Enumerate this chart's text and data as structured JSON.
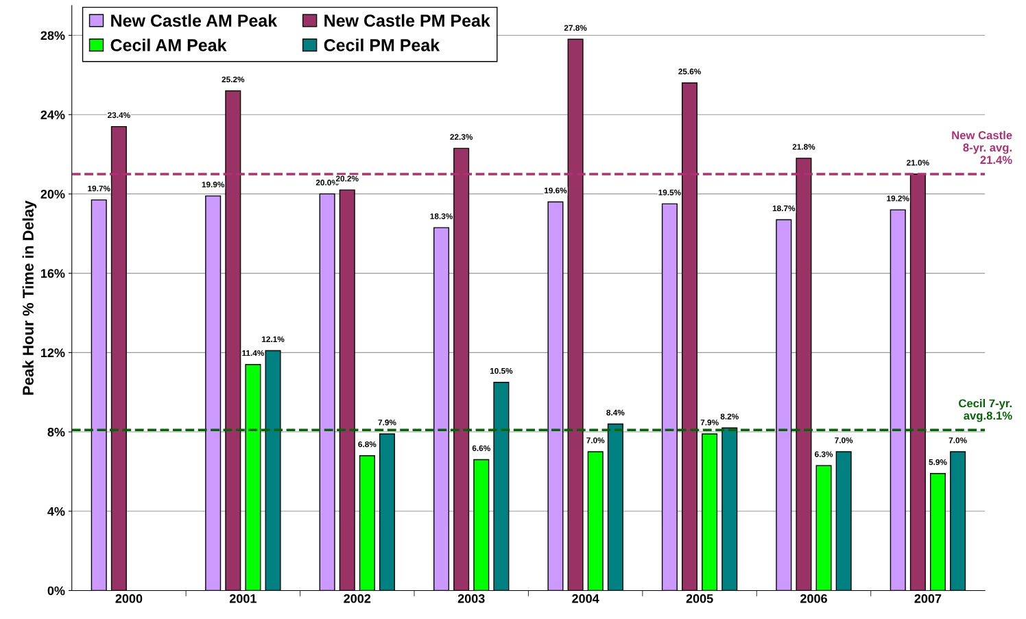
{
  "chart_data": {
    "type": "bar",
    "ylabel": "Peak Hour % Time in Delay",
    "categories": [
      "2000",
      "2001",
      "2002",
      "2003",
      "2004",
      "2005",
      "2006",
      "2007"
    ],
    "series": [
      {
        "name": "New Castle AM Peak",
        "color": "#cc99ff",
        "values": [
          19.7,
          19.9,
          20.0,
          18.3,
          19.6,
          19.5,
          18.7,
          19.2
        ],
        "value_labels": [
          "19.7%",
          "19.9%",
          "20.0%",
          "18.3%",
          "19.6%",
          "19.5%",
          "18.7%",
          "19.2%"
        ]
      },
      {
        "name": "New Castle PM Peak",
        "color": "#993366",
        "values": [
          23.4,
          25.2,
          20.2,
          22.3,
          27.8,
          25.6,
          21.8,
          21.0
        ],
        "value_labels": [
          "23.4%",
          "25.2%",
          "20.2%",
          "22.3%",
          "27.8%",
          "25.6%",
          "21.8%",
          "21.0%"
        ]
      },
      {
        "name": "Cecil AM Peak",
        "color": "#00ff00",
        "values": [
          null,
          11.4,
          6.8,
          6.6,
          7.0,
          7.9,
          6.3,
          5.9
        ],
        "value_labels": [
          null,
          "11.4%",
          "6.8%",
          "6.6%",
          "7.0%",
          "7.9%",
          "6.3%",
          "5.9%"
        ]
      },
      {
        "name": "Cecil PM Peak",
        "color": "#008080",
        "values": [
          null,
          12.1,
          7.9,
          10.5,
          8.4,
          8.2,
          7.0,
          7.0
        ],
        "value_labels": [
          null,
          "12.1%",
          "7.9%",
          "10.5%",
          "8.4%",
          "8.2%",
          "7.0%",
          "7.0%"
        ]
      }
    ],
    "ylim": [
      0,
      29.5
    ],
    "yticks": [
      {
        "value": 0,
        "label": "0%"
      },
      {
        "value": 4,
        "label": "4%"
      },
      {
        "value": 8,
        "label": "8%"
      },
      {
        "value": 12,
        "label": "12%"
      },
      {
        "value": 16,
        "label": "16%"
      },
      {
        "value": 20,
        "label": "20%"
      },
      {
        "value": 24,
        "label": "24%"
      },
      {
        "value": 28,
        "label": "28%"
      }
    ],
    "ref_lines": [
      {
        "axis": "y",
        "value": 21.0,
        "label": "New Castle\n8-yr. avg.\n21.4%",
        "color": "#b03070",
        "line_style": "dashed"
      },
      {
        "axis": "y",
        "value": 8.1,
        "label": "Cecil 7-yr.\navg.8.1%",
        "color": "#006600",
        "line_style": "dashed"
      }
    ],
    "grid": "y",
    "legend": "top left"
  }
}
